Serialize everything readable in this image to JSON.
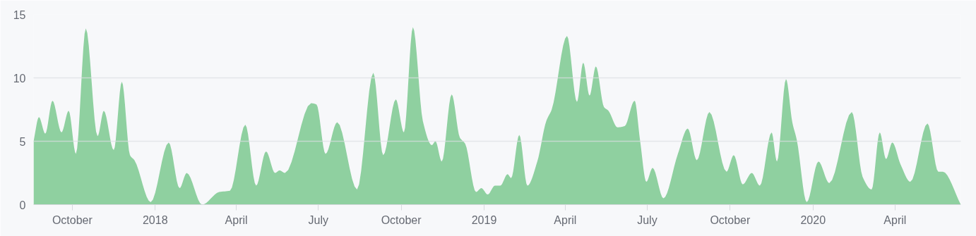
{
  "chart_data": {
    "type": "area",
    "color": "#8fd0a0",
    "grid": "y",
    "xlim": [
      "2017-08-19",
      "2020-06-13"
    ],
    "ylim": [
      0,
      15
    ],
    "yticks": [
      0,
      5,
      10,
      15
    ],
    "xticks": [
      {
        "value": "2017-10-01",
        "label": "October"
      },
      {
        "value": "2018-01-01",
        "label": "2018"
      },
      {
        "value": "2018-04-01",
        "label": "April"
      },
      {
        "value": "2018-07-01",
        "label": "July"
      },
      {
        "value": "2018-10-01",
        "label": "October"
      },
      {
        "value": "2019-01-01",
        "label": "2019"
      },
      {
        "value": "2019-04-01",
        "label": "April"
      },
      {
        "value": "2019-07-01",
        "label": "July"
      },
      {
        "value": "2019-10-01",
        "label": "October"
      },
      {
        "value": "2020-01-01",
        "label": "2020"
      },
      {
        "value": "2020-04-01",
        "label": "April"
      }
    ],
    "x": [
      "2017-08-19",
      "2017-08-25",
      "2017-09-01",
      "2017-09-09",
      "2017-09-19",
      "2017-09-27",
      "2017-10-05",
      "2017-10-16",
      "2017-10-29",
      "2017-11-05",
      "2017-11-16",
      "2017-11-25",
      "2017-12-04",
      "2017-12-09",
      "2017-12-27",
      "2018-01-16",
      "2018-01-28",
      "2018-02-05",
      "2018-02-22",
      "2018-03-13",
      "2018-03-25",
      "2018-04-11",
      "2018-04-23",
      "2018-05-04",
      "2018-05-14",
      "2018-05-19",
      "2018-05-25",
      "2018-06-23",
      "2018-06-29",
      "2018-07-09",
      "2018-07-22",
      "2018-08-13",
      "2018-08-31",
      "2018-09-11",
      "2018-09-25",
      "2018-10-04",
      "2018-10-14",
      "2018-10-25",
      "2018-11-04",
      "2018-11-08",
      "2018-11-15",
      "2018-11-26",
      "2018-12-05",
      "2018-12-11",
      "2018-12-23",
      "2018-12-29",
      "2019-01-05",
      "2019-01-13",
      "2019-01-19",
      "2019-01-27",
      "2019-01-31",
      "2019-02-09",
      "2019-02-18",
      "2019-03-01",
      "2019-03-11",
      "2019-03-17",
      "2019-04-03",
      "2019-04-14",
      "2019-04-21",
      "2019-04-28",
      "2019-05-05",
      "2019-05-14",
      "2019-05-19",
      "2019-05-29",
      "2019-06-06",
      "2019-06-17",
      "2019-06-23",
      "2019-06-30",
      "2019-07-07",
      "2019-07-19",
      "2019-08-04",
      "2019-08-15",
      "2019-08-25",
      "2019-09-08",
      "2019-09-27",
      "2019-10-05",
      "2019-10-15",
      "2019-10-25",
      "2019-11-03",
      "2019-11-16",
      "2019-11-22",
      "2019-12-02",
      "2019-12-09",
      "2019-12-14",
      "2019-12-25",
      "2020-01-07",
      "2020-01-19",
      "2020-02-13",
      "2020-02-25",
      "2020-03-06",
      "2020-03-15",
      "2020-03-22",
      "2020-03-29",
      "2020-04-07",
      "2020-04-18",
      "2020-05-07",
      "2020-05-19",
      "2020-05-24",
      "2020-06-13"
    ],
    "values": [
      5.0,
      6.9,
      5.6,
      8.2,
      5.7,
      7.4,
      4.0,
      13.9,
      5.4,
      7.4,
      4.3,
      9.7,
      3.9,
      3.5,
      0.2,
      4.9,
      1.3,
      2.5,
      0.0,
      1.0,
      1.1,
      6.3,
      1.5,
      4.2,
      2.5,
      2.7,
      2.5,
      8.0,
      7.9,
      4.0,
      6.5,
      1.2,
      10.4,
      3.9,
      8.3,
      5.7,
      14.0,
      6.6,
      4.7,
      5.0,
      3.4,
      8.7,
      5.3,
      4.8,
      1.0,
      1.3,
      0.8,
      1.5,
      1.5,
      2.4,
      2.1,
      5.5,
      1.5,
      3.4,
      6.6,
      7.5,
      13.3,
      8.1,
      11.2,
      8.6,
      10.9,
      7.7,
      7.4,
      6.1,
      6.2,
      8.2,
      5.1,
      1.8,
      2.9,
      0.5,
      4.0,
      6.0,
      3.5,
      7.3,
      2.6,
      3.9,
      1.6,
      2.5,
      1.5,
      5.7,
      3.4,
      9.9,
      6.5,
      5.1,
      0.2,
      3.4,
      1.7,
      7.3,
      2.2,
      1.2,
      5.7,
      3.6,
      4.9,
      3.2,
      1.8,
      6.4,
      2.6,
      2.6,
      0.0
    ]
  }
}
